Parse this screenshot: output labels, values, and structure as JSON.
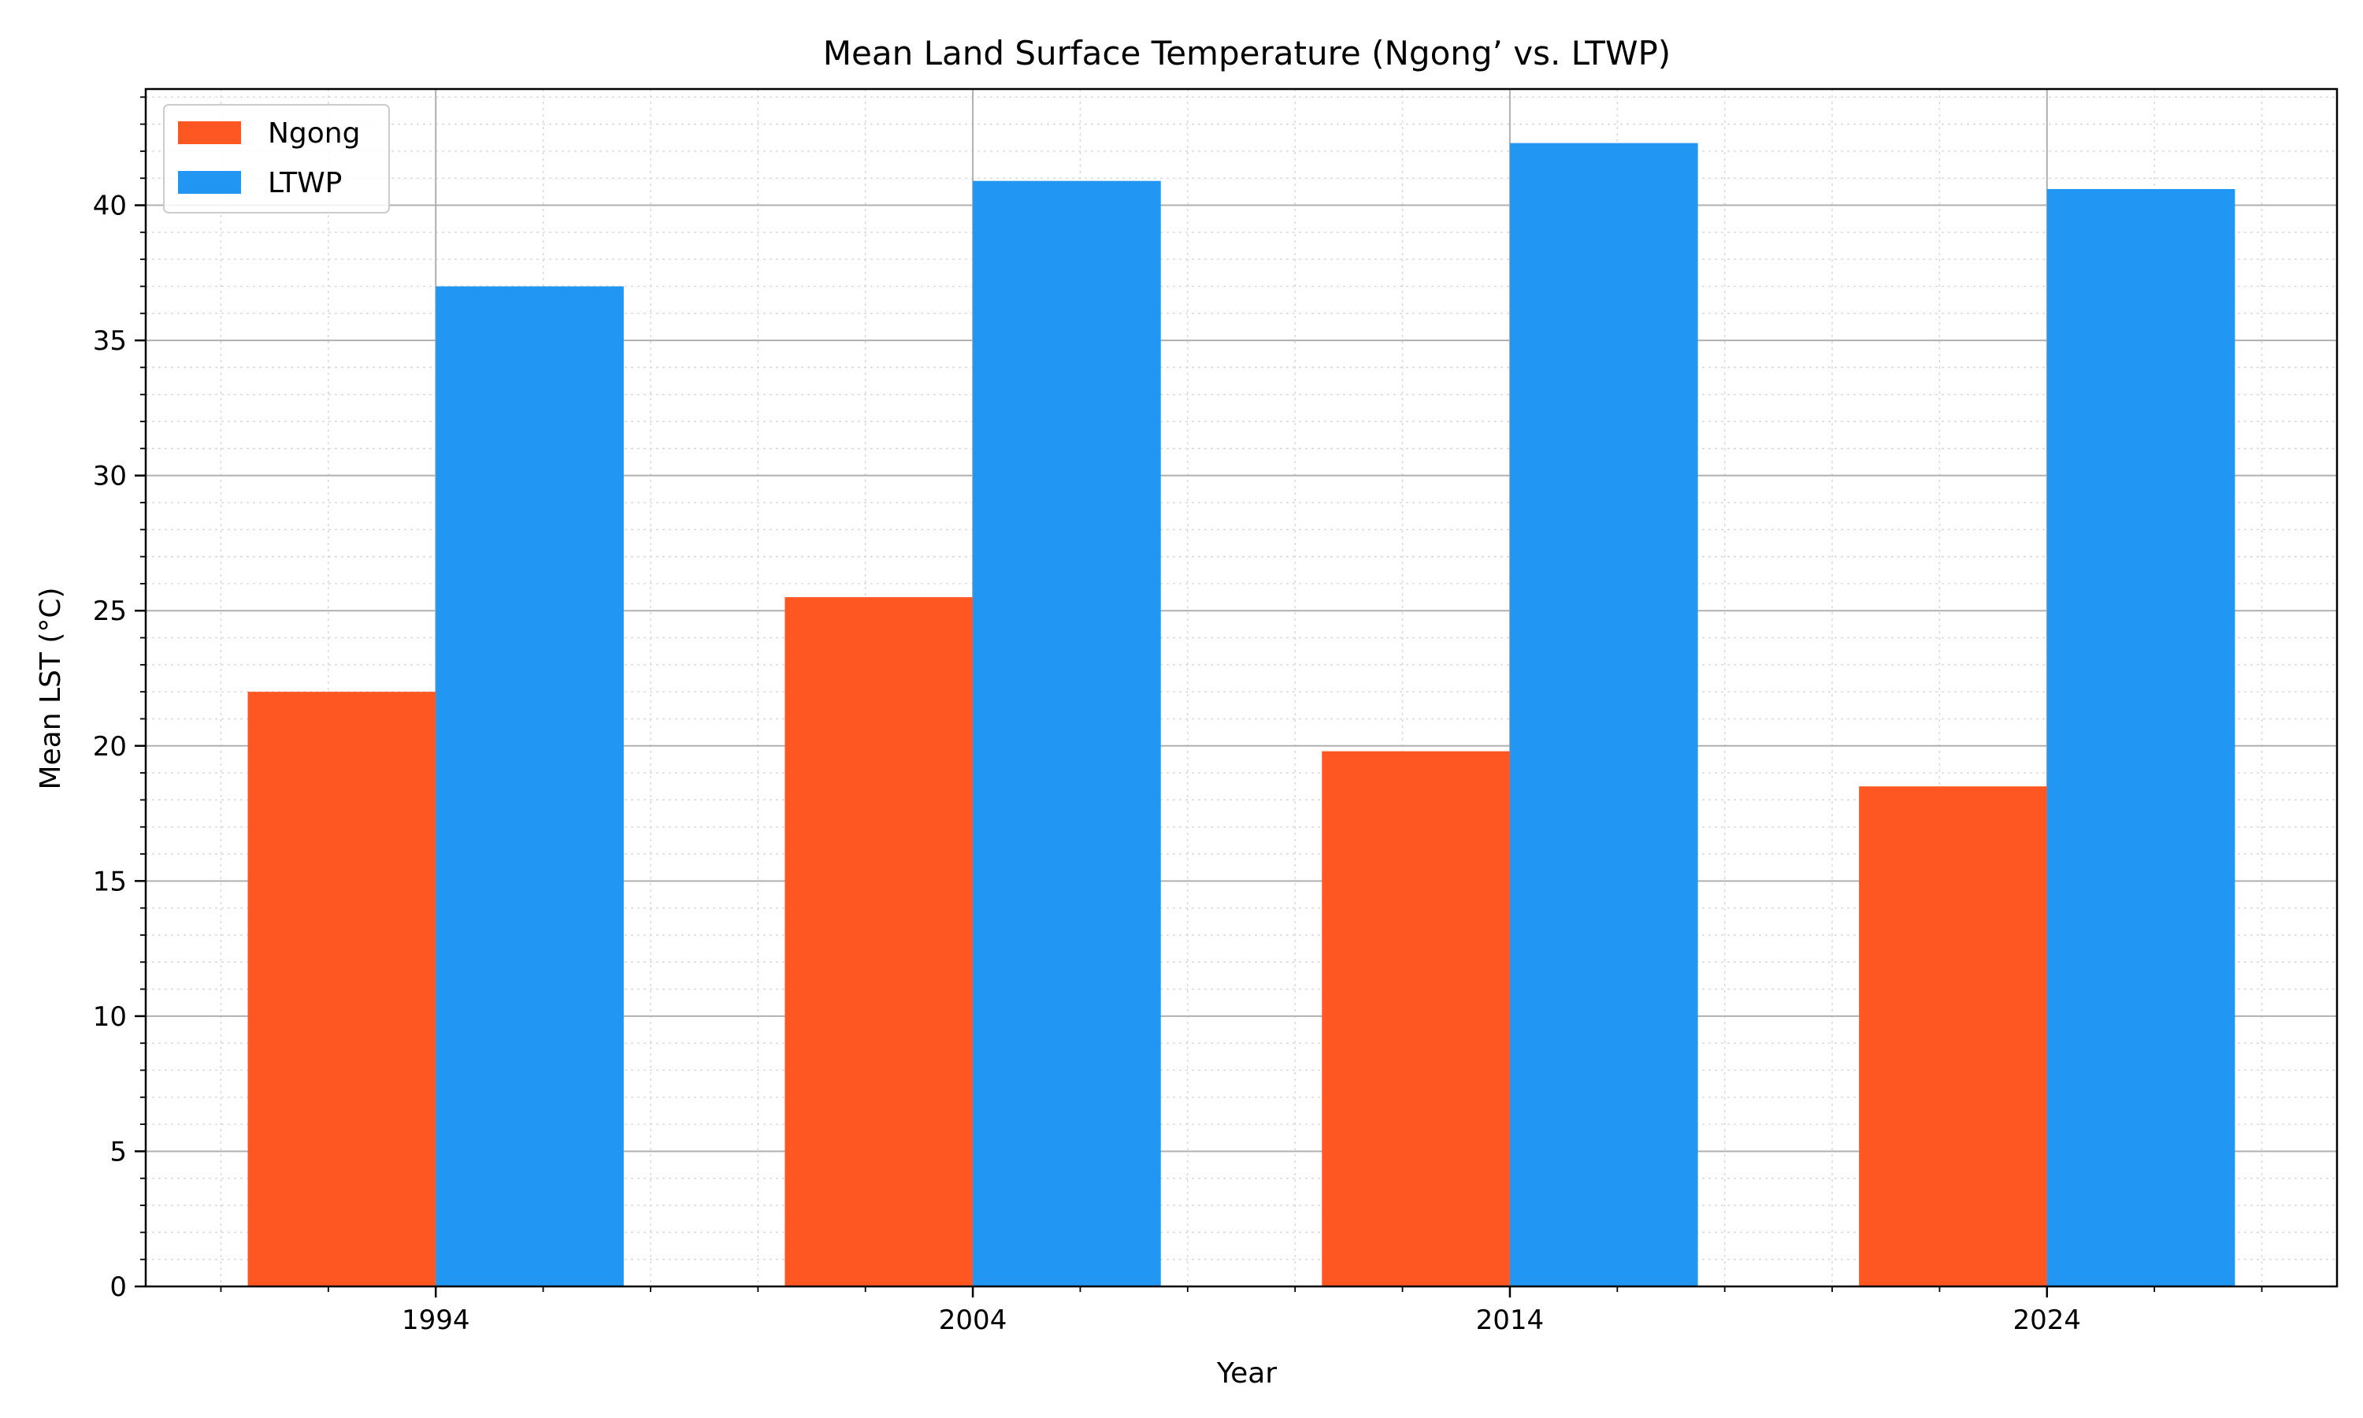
{
  "chart_data": {
    "type": "bar",
    "title": "Mean Land Surface Temperature (Ngong’ vs. LTWP)",
    "xlabel": "Year",
    "ylabel": "Mean LST (°C)",
    "categories": [
      "1994",
      "2004",
      "2014",
      "2024"
    ],
    "x_values": [
      1994,
      2004,
      2014,
      2024
    ],
    "xlim": [
      1988.6,
      2029.4
    ],
    "ylim": [
      0,
      44.3
    ],
    "y_ticks": [
      0,
      5,
      10,
      15,
      20,
      25,
      30,
      35,
      40
    ],
    "grid": true,
    "legend_position": "top-left",
    "series": [
      {
        "name": "Ngong",
        "color": "#ff5722",
        "values": [
          22.0,
          25.5,
          19.8,
          18.5
        ]
      },
      {
        "name": "LTWP",
        "color": "#2196f3",
        "values": [
          37.0,
          40.9,
          42.3,
          40.6
        ]
      }
    ]
  }
}
